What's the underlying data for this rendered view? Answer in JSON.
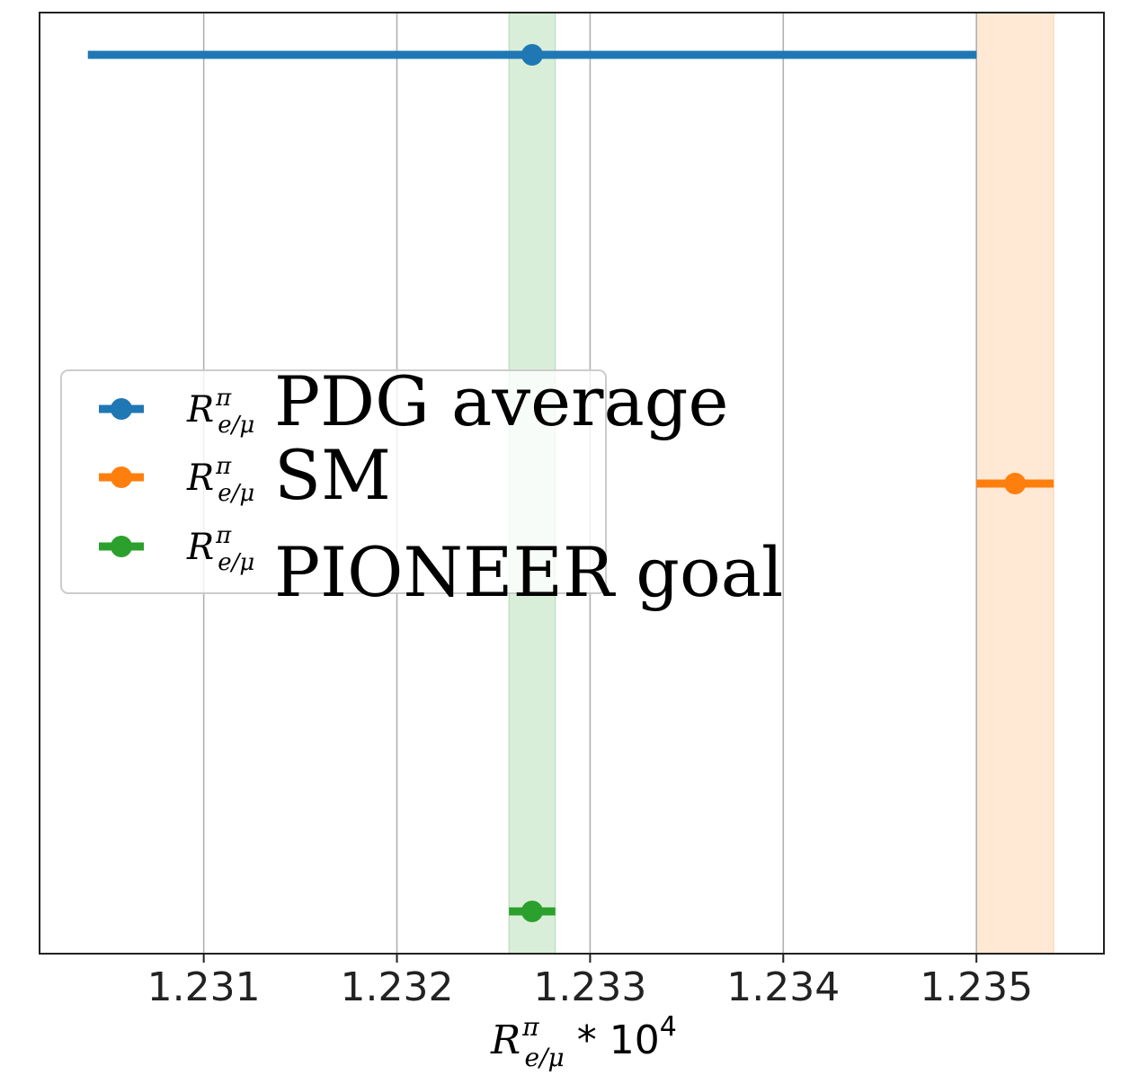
{
  "chart_data": {
    "type": "scatter",
    "xlabel": {
      "symbol": "R",
      "superscript": "π",
      "subscript": "e/μ",
      "suffix": " * 10",
      "exponent": "4"
    },
    "xlim": [
      1.23015,
      1.23566
    ],
    "x_ticks": [
      "1.231",
      "1.232",
      "1.233",
      "1.234",
      "1.235"
    ],
    "grid": true,
    "y_axis_ticks": false,
    "legend": {
      "placement": "center-left",
      "entries": [
        {
          "symbol": "R",
          "superscript": "π",
          "subscript": "e/μ",
          "text": "PDG average"
        },
        {
          "symbol": "R",
          "superscript": "π",
          "subscript": "e/μ",
          "text": "SM"
        },
        {
          "symbol": "R",
          "superscript": "π",
          "subscript": "e/μ",
          "text": "PIONEER goal"
        }
      ]
    },
    "series": [
      {
        "value": 1.2327,
        "err_low": 0.0023,
        "err_high": 0.0023,
        "y_level": 2,
        "color": "#1f77b4",
        "band": false
      },
      {
        "value": 1.2352,
        "err_low": 0.0002,
        "err_high": 0.0002,
        "y_level": 1,
        "color": "#ff7f0e",
        "band": true,
        "band_range": [
          1.235,
          1.2354
        ]
      },
      {
        "value": 1.2327,
        "err_low": 0.00012,
        "err_high": 0.00012,
        "y_level": 0,
        "color": "#2ca02c",
        "band": true,
        "band_range": [
          1.23258,
          1.23282
        ]
      }
    ]
  }
}
